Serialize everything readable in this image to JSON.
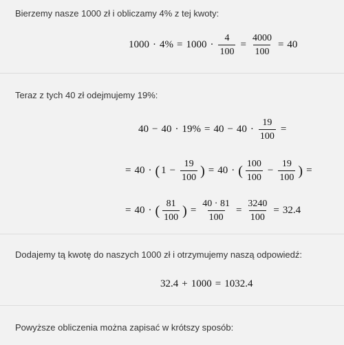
{
  "s1": {
    "text": "Bierzemy nasze 1000 zł i obliczamy 4% z tej kwoty:",
    "eq": {
      "a": "1000",
      "dot1": "·",
      "b": "4%",
      "eq1": "=",
      "c": "1000",
      "dot2": "·",
      "f1n": "4",
      "f1d": "100",
      "eq2": "=",
      "f2n": "4000",
      "f2d": "100",
      "eq3": "=",
      "r": "40"
    }
  },
  "s2": {
    "text": "Teraz z tych 40 zł odejmujemy 19%:",
    "eq1": {
      "a": "40",
      "minus1": "−",
      "b": "40",
      "dot1": "·",
      "c": "19%",
      "eq1": "=",
      "d": "40",
      "minus2": "−",
      "e": "40",
      "dot2": "·",
      "fn": "19",
      "fd": "100",
      "eq2": "="
    },
    "eq2": {
      "eq0": "=",
      "a": "40",
      "dot1": "·",
      "lp1": "(",
      "one": "1",
      "minus1": "−",
      "f1n": "19",
      "f1d": "100",
      "rp1": ")",
      "eq1": "=",
      "b": "40",
      "dot2": "·",
      "lp2": "(",
      "f2n": "100",
      "f2d": "100",
      "minus2": "−",
      "f3n": "19",
      "f3d": "100",
      "rp2": ")",
      "eq2": "="
    },
    "eq3": {
      "eq0": "=",
      "a": "40",
      "dot1": "·",
      "lp": "(",
      "f1n": "81",
      "f1d": "100",
      "rp": ")",
      "eq1": "=",
      "f2n": "40 · 81",
      "f2d": "100",
      "eq2": "=",
      "f3n": "3240",
      "f3d": "100",
      "eq3": "=",
      "r": "32.4"
    }
  },
  "s3": {
    "text": "Dodajemy tą kwotę do naszych 1000 zł i otrzymujemy naszą odpowiedź:",
    "eq": {
      "a": "32.4",
      "plus": "+",
      "b": "1000",
      "eq": "=",
      "r": "1032.4"
    }
  },
  "s4": {
    "text": "Powyższe obliczenia można zapisać w krótszy sposób:"
  }
}
